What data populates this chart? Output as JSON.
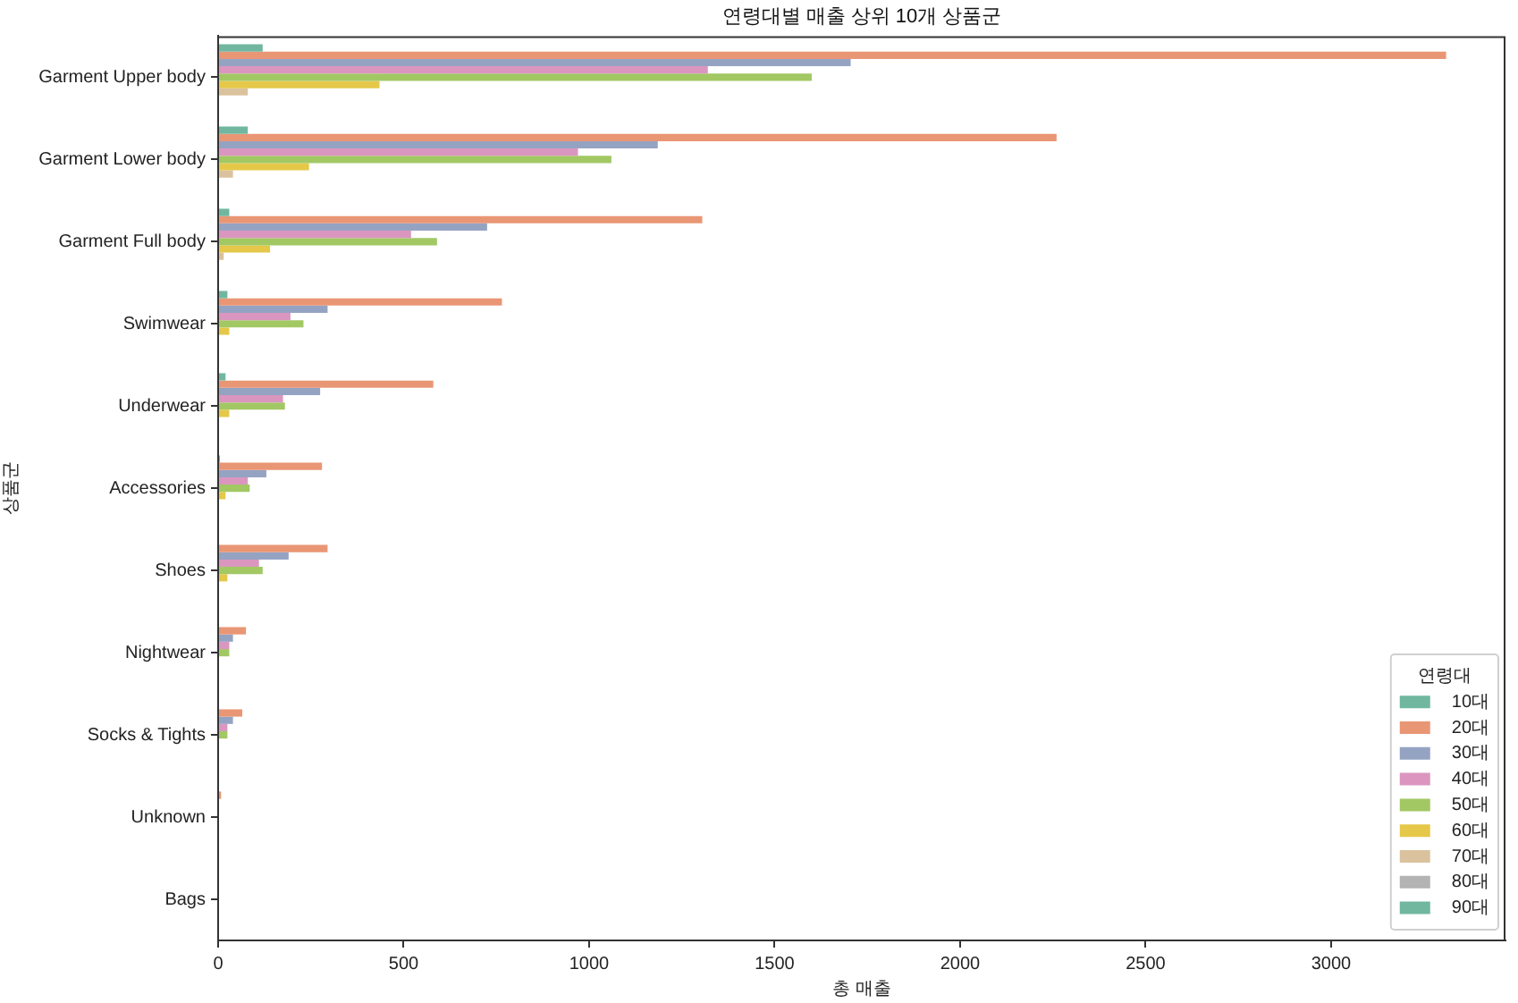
{
  "chart_data": {
    "type": "bar",
    "orientation": "horizontal",
    "title": "연령대별 매출 상위 10개 상품군",
    "xlabel": "총 매출",
    "ylabel": "상품군",
    "legend_title": "연령대",
    "legend": "bottom right",
    "grid": false,
    "categories": [
      "Garment Upper body",
      "Garment Lower body",
      "Garment Full body",
      "Swimwear",
      "Underwear",
      "Accessories",
      "Shoes",
      "Nightwear",
      "Socks & Tights",
      "Unknown",
      "Bags"
    ],
    "series": [
      {
        "name": "10대",
        "color": "#71b7a0",
        "values": [
          120,
          80,
          30,
          25,
          20,
          5,
          0,
          0,
          0,
          0,
          0
        ]
      },
      {
        "name": "20대",
        "color": "#e99675",
        "values": [
          3310,
          2260,
          1305,
          765,
          580,
          280,
          295,
          75,
          65,
          8,
          0
        ]
      },
      {
        "name": "30대",
        "color": "#95a3c3",
        "values": [
          1705,
          1185,
          725,
          295,
          275,
          130,
          190,
          40,
          40,
          0,
          0
        ]
      },
      {
        "name": "40대",
        "color": "#db96c0",
        "values": [
          1320,
          970,
          520,
          195,
          175,
          80,
          110,
          30,
          25,
          0,
          0
        ]
      },
      {
        "name": "50대",
        "color": "#a2c864",
        "values": [
          1600,
          1060,
          590,
          230,
          180,
          85,
          120,
          30,
          25,
          0,
          0
        ]
      },
      {
        "name": "60대",
        "color": "#e5c849",
        "values": [
          435,
          245,
          140,
          30,
          30,
          20,
          25,
          0,
          0,
          0,
          0
        ]
      },
      {
        "name": "70대",
        "color": "#dbc29e",
        "values": [
          80,
          40,
          15,
          0,
          0,
          0,
          0,
          0,
          0,
          0,
          0
        ]
      },
      {
        "name": "80대",
        "color": "#b3b3b3",
        "values": [
          0,
          0,
          0,
          0,
          0,
          0,
          0,
          0,
          0,
          0,
          0
        ]
      },
      {
        "name": "90대",
        "color": "#71b7a0",
        "values": [
          0,
          0,
          0,
          0,
          0,
          0,
          0,
          0,
          0,
          0,
          0
        ]
      }
    ],
    "xlim": [
      0,
      3470
    ],
    "xticks": [
      0,
      500,
      1000,
      1500,
      2000,
      2500,
      3000
    ]
  }
}
